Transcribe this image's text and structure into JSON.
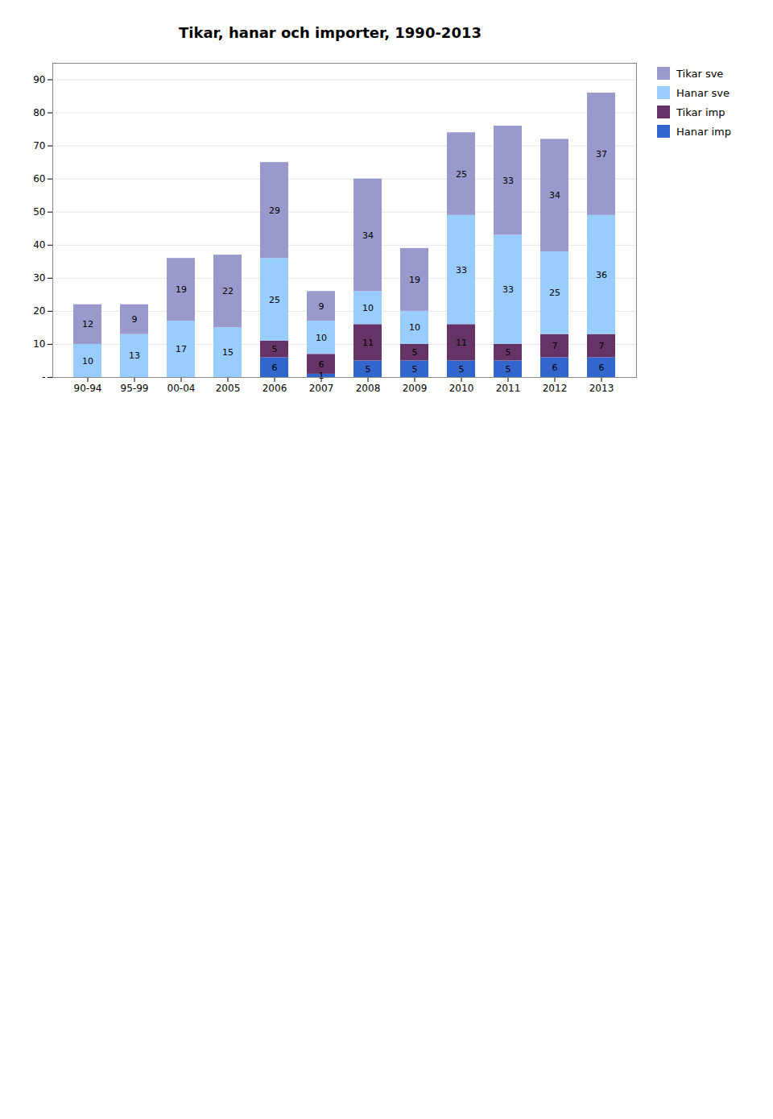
{
  "chart_data": {
    "type": "bar",
    "title": "Tikar, hanar och importer, 1990-2013",
    "categories": [
      "90-94",
      "95-99",
      "00-04",
      "2005",
      "2006",
      "2007",
      "2008",
      "2009",
      "2010",
      "2011",
      "2012",
      "2013"
    ],
    "series": [
      {
        "name": "Tikar sve",
        "color": "#9999CC",
        "values": [
          12,
          9,
          19,
          22,
          29,
          9,
          34,
          19,
          25,
          33,
          34,
          37
        ]
      },
      {
        "name": "Hanar sve",
        "color": "#99CCFF",
        "values": [
          10,
          13,
          17,
          15,
          25,
          10,
          10,
          10,
          33,
          33,
          25,
          36
        ]
      },
      {
        "name": "Tikar imp",
        "color": "#663366",
        "values": [
          0,
          0,
          0,
          0,
          5,
          6,
          11,
          5,
          11,
          5,
          7,
          7
        ]
      },
      {
        "name": "Hanar imp",
        "color": "#3366CC",
        "values": [
          0,
          0,
          0,
          0,
          6,
          1,
          5,
          5,
          5,
          5,
          6,
          6
        ]
      }
    ],
    "stacked": true,
    "data_labels": true,
    "ylim": [
      0,
      95
    ],
    "yticks": [
      {
        "value": 0,
        "label": "-"
      },
      10,
      20,
      30,
      40,
      50,
      60,
      70,
      80,
      90
    ],
    "grid": true,
    "legend": "right"
  }
}
